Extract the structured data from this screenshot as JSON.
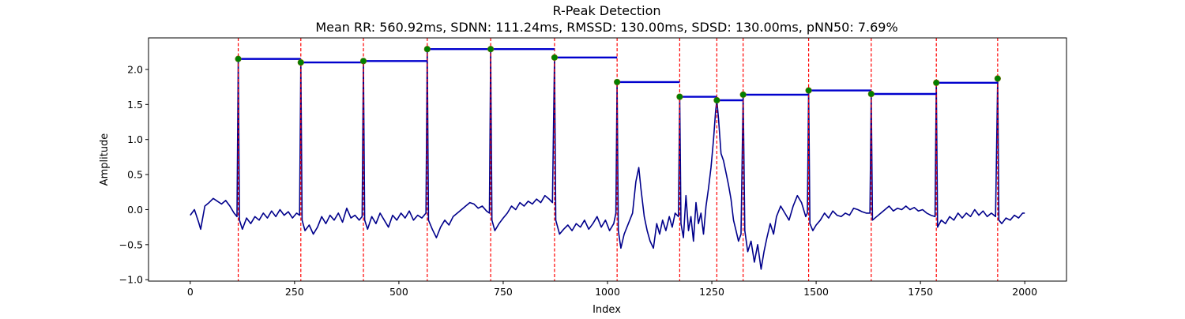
{
  "chart_data": {
    "type": "line",
    "title": "R-Peak Detection",
    "subtitle": "Mean RR: 560.92ms, SDNN: 111.24ms, RMSSD: 130.00ms, SDSD: 130.00ms, pNN50: 7.69%",
    "xlabel": "Index",
    "ylabel": "Amplitude",
    "xlim": [
      -100,
      2100
    ],
    "ylim": [
      -1.02,
      2.45
    ],
    "xticks": [
      0,
      250,
      500,
      750,
      1000,
      1250,
      1500,
      1750,
      2000
    ],
    "yticks": [
      -1.0,
      -0.5,
      0.0,
      0.5,
      1.0,
      1.5,
      2.0
    ],
    "ytick_labels": [
      "−1.0",
      "−0.5",
      "0.0",
      "0.5",
      "1.0",
      "1.5",
      "2.0"
    ],
    "grid": false,
    "colors": {
      "signal": "#00008b",
      "peak_lines": "#ff0000",
      "peak_markers": "#008000",
      "rr_bars": "#0000cd"
    },
    "peaks": [
      {
        "x": 115,
        "y": 2.15
      },
      {
        "x": 265,
        "y": 2.1
      },
      {
        "x": 415,
        "y": 2.12
      },
      {
        "x": 568,
        "y": 2.29
      },
      {
        "x": 720,
        "y": 2.29
      },
      {
        "x": 873,
        "y": 2.17
      },
      {
        "x": 1023,
        "y": 1.82
      },
      {
        "x": 1173,
        "y": 1.61
      },
      {
        "x": 1262,
        "y": 1.56
      },
      {
        "x": 1325,
        "y": 1.64
      },
      {
        "x": 1482,
        "y": 1.7
      },
      {
        "x": 1632,
        "y": 1.65
      },
      {
        "x": 1788,
        "y": 1.81
      },
      {
        "x": 1935,
        "y": 1.87
      }
    ],
    "signal": [
      [
        0,
        -0.08
      ],
      [
        10,
        0.0
      ],
      [
        20,
        -0.18
      ],
      [
        25,
        -0.28
      ],
      [
        35,
        0.05
      ],
      [
        45,
        0.1
      ],
      [
        55,
        0.16
      ],
      [
        65,
        0.12
      ],
      [
        75,
        0.08
      ],
      [
        85,
        0.13
      ],
      [
        95,
        0.05
      ],
      [
        105,
        -0.05
      ],
      [
        112,
        -0.1
      ],
      [
        115,
        2.15
      ],
      [
        118,
        -0.15
      ],
      [
        125,
        -0.28
      ],
      [
        135,
        -0.12
      ],
      [
        145,
        -0.2
      ],
      [
        155,
        -0.1
      ],
      [
        165,
        -0.15
      ],
      [
        175,
        -0.05
      ],
      [
        185,
        -0.12
      ],
      [
        195,
        -0.02
      ],
      [
        205,
        -0.1
      ],
      [
        215,
        0.0
      ],
      [
        225,
        -0.08
      ],
      [
        235,
        -0.03
      ],
      [
        245,
        -0.12
      ],
      [
        255,
        -0.05
      ],
      [
        262,
        -0.08
      ],
      [
        265,
        2.1
      ],
      [
        268,
        -0.15
      ],
      [
        275,
        -0.3
      ],
      [
        285,
        -0.22
      ],
      [
        295,
        -0.35
      ],
      [
        305,
        -0.25
      ],
      [
        315,
        -0.1
      ],
      [
        325,
        -0.2
      ],
      [
        335,
        -0.08
      ],
      [
        345,
        -0.15
      ],
      [
        355,
        -0.05
      ],
      [
        365,
        -0.18
      ],
      [
        375,
        0.02
      ],
      [
        385,
        -0.12
      ],
      [
        395,
        -0.08
      ],
      [
        405,
        -0.15
      ],
      [
        412,
        -0.1
      ],
      [
        415,
        2.12
      ],
      [
        418,
        -0.15
      ],
      [
        425,
        -0.28
      ],
      [
        435,
        -0.1
      ],
      [
        445,
        -0.2
      ],
      [
        455,
        -0.05
      ],
      [
        465,
        -0.15
      ],
      [
        475,
        -0.25
      ],
      [
        485,
        -0.08
      ],
      [
        495,
        -0.15
      ],
      [
        505,
        -0.05
      ],
      [
        515,
        -0.12
      ],
      [
        525,
        -0.02
      ],
      [
        535,
        -0.15
      ],
      [
        545,
        -0.08
      ],
      [
        555,
        -0.12
      ],
      [
        565,
        -0.05
      ],
      [
        568,
        2.29
      ],
      [
        571,
        -0.15
      ],
      [
        580,
        -0.28
      ],
      [
        590,
        -0.4
      ],
      [
        600,
        -0.25
      ],
      [
        610,
        -0.15
      ],
      [
        620,
        -0.22
      ],
      [
        630,
        -0.1
      ],
      [
        640,
        -0.05
      ],
      [
        650,
        0.0
      ],
      [
        660,
        0.05
      ],
      [
        670,
        0.1
      ],
      [
        680,
        0.08
      ],
      [
        690,
        0.02
      ],
      [
        700,
        0.05
      ],
      [
        710,
        -0.02
      ],
      [
        717,
        -0.05
      ],
      [
        720,
        2.29
      ],
      [
        723,
        -0.15
      ],
      [
        730,
        -0.3
      ],
      [
        740,
        -0.2
      ],
      [
        750,
        -0.12
      ],
      [
        760,
        -0.05
      ],
      [
        770,
        0.05
      ],
      [
        780,
        0.0
      ],
      [
        790,
        0.1
      ],
      [
        800,
        0.05
      ],
      [
        810,
        0.12
      ],
      [
        820,
        0.08
      ],
      [
        830,
        0.15
      ],
      [
        840,
        0.1
      ],
      [
        850,
        0.2
      ],
      [
        860,
        0.15
      ],
      [
        868,
        0.1
      ],
      [
        873,
        2.17
      ],
      [
        876,
        -0.15
      ],
      [
        885,
        -0.35
      ],
      [
        895,
        -0.28
      ],
      [
        905,
        -0.22
      ],
      [
        915,
        -0.3
      ],
      [
        925,
        -0.2
      ],
      [
        935,
        -0.25
      ],
      [
        945,
        -0.15
      ],
      [
        955,
        -0.28
      ],
      [
        965,
        -0.2
      ],
      [
        975,
        -0.1
      ],
      [
        985,
        -0.25
      ],
      [
        995,
        -0.15
      ],
      [
        1005,
        -0.3
      ],
      [
        1015,
        -0.2
      ],
      [
        1020,
        -0.05
      ],
      [
        1023,
        1.82
      ],
      [
        1026,
        -0.3
      ],
      [
        1032,
        -0.55
      ],
      [
        1040,
        -0.35
      ],
      [
        1050,
        -0.2
      ],
      [
        1060,
        -0.05
      ],
      [
        1068,
        0.4
      ],
      [
        1075,
        0.6
      ],
      [
        1080,
        0.3
      ],
      [
        1088,
        -0.1
      ],
      [
        1095,
        -0.3
      ],
      [
        1102,
        -0.45
      ],
      [
        1110,
        -0.55
      ],
      [
        1118,
        -0.2
      ],
      [
        1125,
        -0.35
      ],
      [
        1132,
        -0.15
      ],
      [
        1140,
        -0.3
      ],
      [
        1148,
        -0.1
      ],
      [
        1155,
        -0.25
      ],
      [
        1162,
        -0.05
      ],
      [
        1170,
        -0.1
      ],
      [
        1173,
        1.61
      ],
      [
        1176,
        -0.2
      ],
      [
        1182,
        -0.4
      ],
      [
        1188,
        0.2
      ],
      [
        1194,
        -0.3
      ],
      [
        1200,
        -0.1
      ],
      [
        1206,
        -0.45
      ],
      [
        1212,
        0.1
      ],
      [
        1218,
        -0.2
      ],
      [
        1224,
        -0.05
      ],
      [
        1230,
        -0.35
      ],
      [
        1236,
        0.05
      ],
      [
        1242,
        0.3
      ],
      [
        1248,
        0.6
      ],
      [
        1254,
        1.0
      ],
      [
        1259,
        1.4
      ],
      [
        1262,
        1.56
      ],
      [
        1266,
        1.3
      ],
      [
        1272,
        0.8
      ],
      [
        1278,
        0.7
      ],
      [
        1285,
        0.5
      ],
      [
        1290,
        0.35
      ],
      [
        1296,
        0.15
      ],
      [
        1302,
        -0.15
      ],
      [
        1308,
        -0.3
      ],
      [
        1314,
        -0.45
      ],
      [
        1320,
        -0.35
      ],
      [
        1325,
        1.64
      ],
      [
        1329,
        -0.3
      ],
      [
        1336,
        -0.6
      ],
      [
        1344,
        -0.45
      ],
      [
        1352,
        -0.75
      ],
      [
        1360,
        -0.5
      ],
      [
        1368,
        -0.85
      ],
      [
        1375,
        -0.6
      ],
      [
        1382,
        -0.4
      ],
      [
        1390,
        -0.2
      ],
      [
        1398,
        -0.35
      ],
      [
        1405,
        -0.1
      ],
      [
        1415,
        0.05
      ],
      [
        1425,
        -0.05
      ],
      [
        1435,
        -0.15
      ],
      [
        1445,
        0.05
      ],
      [
        1455,
        0.2
      ],
      [
        1465,
        0.1
      ],
      [
        1475,
        -0.1
      ],
      [
        1479,
        -0.05
      ],
      [
        1482,
        1.7
      ],
      [
        1485,
        -0.2
      ],
      [
        1492,
        -0.3
      ],
      [
        1500,
        -0.22
      ],
      [
        1510,
        -0.15
      ],
      [
        1520,
        -0.05
      ],
      [
        1530,
        -0.12
      ],
      [
        1540,
        -0.02
      ],
      [
        1550,
        -0.08
      ],
      [
        1560,
        -0.1
      ],
      [
        1570,
        -0.05
      ],
      [
        1580,
        -0.08
      ],
      [
        1590,
        0.02
      ],
      [
        1600,
        0.0
      ],
      [
        1610,
        -0.03
      ],
      [
        1620,
        -0.05
      ],
      [
        1629,
        -0.05
      ],
      [
        1632,
        1.65
      ],
      [
        1635,
        -0.15
      ],
      [
        1645,
        -0.1
      ],
      [
        1655,
        -0.05
      ],
      [
        1665,
        0.0
      ],
      [
        1675,
        0.05
      ],
      [
        1685,
        -0.02
      ],
      [
        1695,
        0.02
      ],
      [
        1705,
        0.0
      ],
      [
        1715,
        0.05
      ],
      [
        1725,
        0.0
      ],
      [
        1735,
        0.03
      ],
      [
        1745,
        -0.02
      ],
      [
        1755,
        0.0
      ],
      [
        1765,
        -0.05
      ],
      [
        1775,
        -0.08
      ],
      [
        1785,
        -0.1
      ],
      [
        1788,
        1.81
      ],
      [
        1791,
        -0.25
      ],
      [
        1800,
        -0.15
      ],
      [
        1810,
        -0.2
      ],
      [
        1820,
        -0.1
      ],
      [
        1830,
        -0.15
      ],
      [
        1840,
        -0.05
      ],
      [
        1850,
        -0.12
      ],
      [
        1860,
        -0.05
      ],
      [
        1870,
        -0.1
      ],
      [
        1880,
        0.0
      ],
      [
        1890,
        -0.08
      ],
      [
        1900,
        -0.02
      ],
      [
        1910,
        -0.1
      ],
      [
        1920,
        -0.05
      ],
      [
        1930,
        -0.1
      ],
      [
        1935,
        1.87
      ],
      [
        1938,
        -0.15
      ],
      [
        1945,
        -0.2
      ],
      [
        1955,
        -0.12
      ],
      [
        1965,
        -0.15
      ],
      [
        1975,
        -0.08
      ],
      [
        1985,
        -0.12
      ],
      [
        1995,
        -0.05
      ],
      [
        2000,
        -0.05
      ]
    ]
  }
}
